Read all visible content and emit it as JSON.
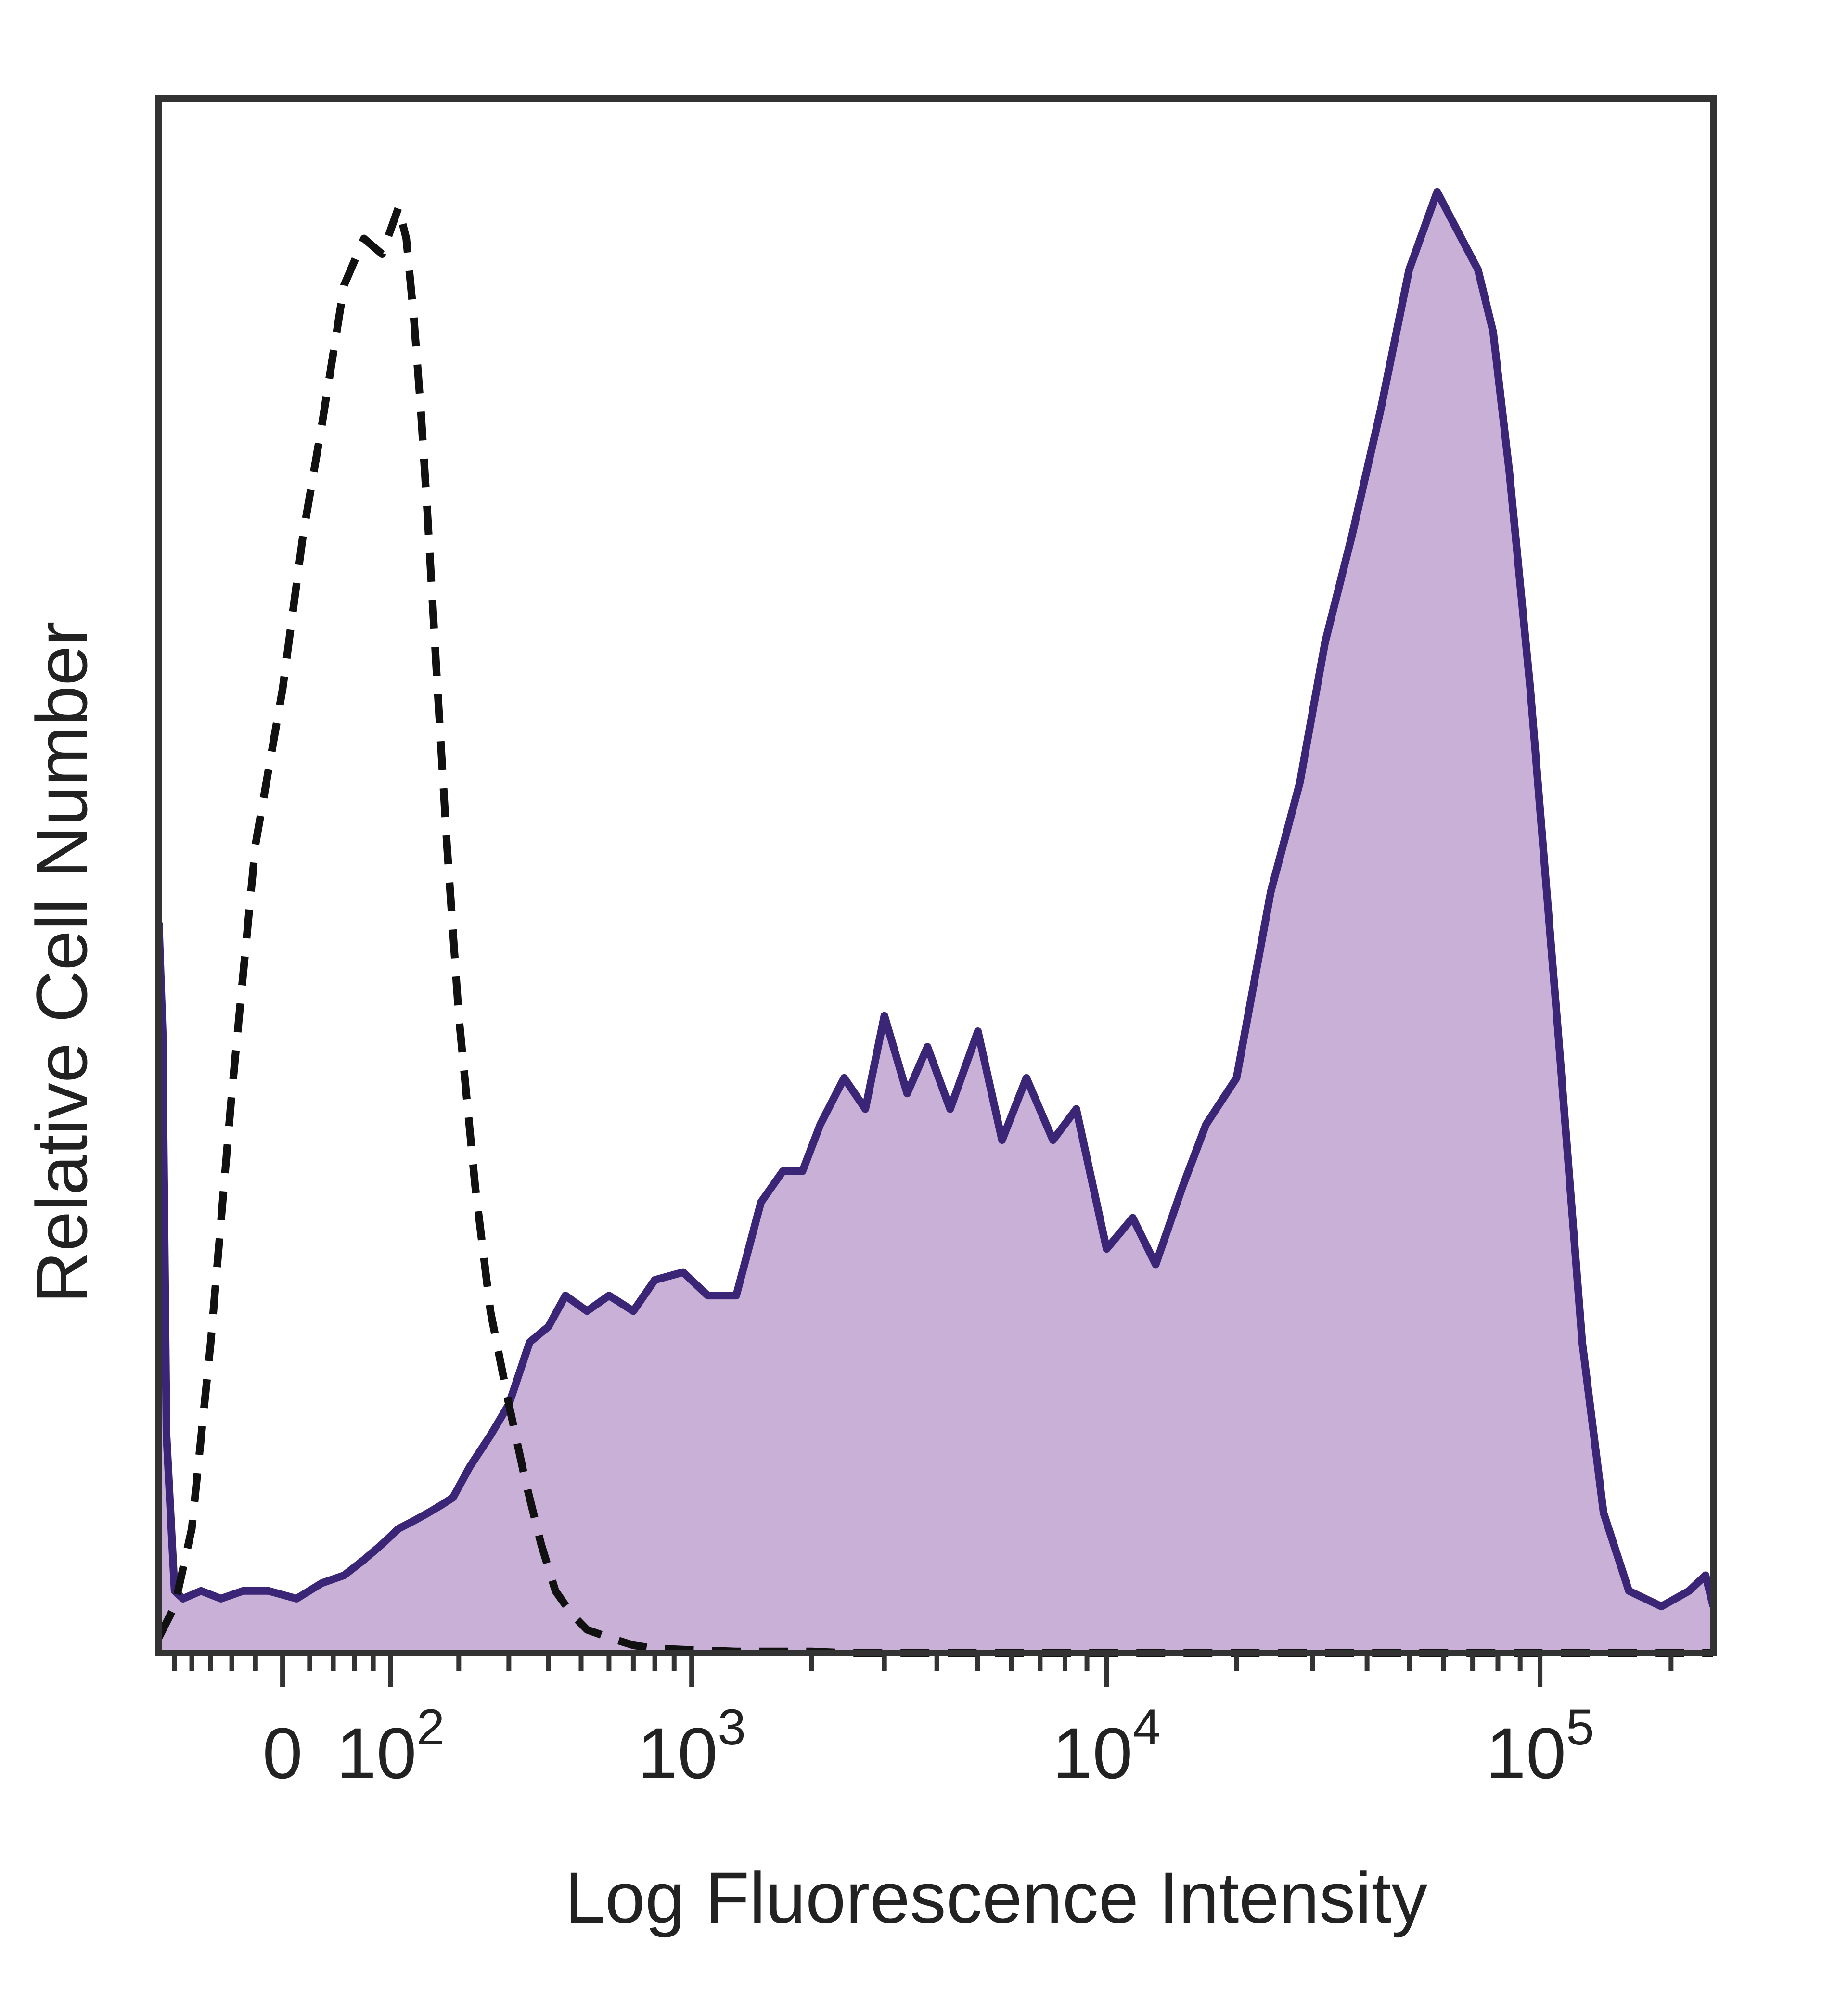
{
  "chart_data": {
    "type": "area",
    "xlabel": "Log Fluorescence Intensity",
    "ylabel": "Relative Cell Number",
    "x_scale": "biexponential",
    "x_ticks": [
      {
        "value": 0,
        "base": "0",
        "exp": ""
      },
      {
        "value": 100,
        "base": "10",
        "exp": "2"
      },
      {
        "value": 1000,
        "base": "10",
        "exp": "3"
      },
      {
        "value": 10000,
        "base": "10",
        "exp": "4"
      },
      {
        "value": 100000,
        "base": "10",
        "exp": "5"
      }
    ],
    "x_range": [
      -120,
      250000
    ],
    "y_range": [
      0,
      100
    ],
    "colors": {
      "stained_line": "#3a2577",
      "stained_fill": "#c8b0d6",
      "control_line": "#111111"
    },
    "series": [
      {
        "style": "filled",
        "x": [
          -120,
          -115,
          -110,
          -100,
          -90,
          -70,
          -50,
          -30,
          -10,
          10,
          30,
          50,
          70,
          90,
          110,
          130,
          150,
          170,
          190,
          220,
          260,
          300,
          350,
          400,
          450,
          520,
          600,
          700,
          800,
          950,
          1100,
          1300,
          1500,
          1700,
          1900,
          2100,
          2400,
          2700,
          3000,
          3400,
          3800,
          4300,
          5000,
          5700,
          6500,
          7500,
          8500,
          10000,
          11500,
          13000,
          15000,
          17000,
          20000,
          24000,
          28000,
          32000,
          37000,
          43000,
          50000,
          58000,
          66000,
          72000,
          78000,
          85000,
          95000,
          110000,
          125000,
          140000,
          160000,
          190000,
          220000,
          240000,
          250000
        ],
        "values": [
          47,
          40,
          14,
          4,
          3.5,
          4,
          3.5,
          4,
          4,
          3.5,
          4.5,
          5,
          6,
          7,
          8,
          8.5,
          9,
          9.5,
          10,
          12,
          14,
          16,
          20,
          21,
          23,
          22,
          23,
          22,
          24,
          24.5,
          23,
          23,
          29,
          31,
          31,
          34,
          37,
          35,
          41,
          36,
          39,
          35,
          40,
          33,
          37,
          33,
          35,
          26,
          28,
          25,
          30,
          34,
          37,
          49,
          56,
          65,
          72,
          80,
          89,
          94,
          91,
          89,
          85,
          76,
          62,
          40,
          20,
          9,
          4,
          3,
          4,
          5,
          3
        ]
      },
      {
        "style": "dashed",
        "x": [
          -120,
          -100,
          -80,
          -60,
          -40,
          -20,
          0,
          15,
          30,
          50,
          70,
          90,
          110,
          120,
          130,
          140,
          150,
          165,
          180,
          200,
          230,
          260,
          300,
          340,
          380,
          420,
          470,
          520,
          600,
          700,
          800,
          1000,
          1300,
          1600,
          2000,
          2500,
          3000,
          4000,
          5000,
          7000,
          10000,
          20000,
          50000,
          100000,
          250000
        ],
        "values": [
          1,
          3,
          8,
          20,
          36,
          52,
          62,
          72,
          79,
          88,
          91,
          90,
          93,
          91,
          86,
          80,
          73,
          62,
          52,
          41,
          30,
          22,
          16,
          11,
          7,
          4,
          2.5,
          1.5,
          1,
          0.5,
          0.3,
          0.2,
          0.1,
          0.1,
          0.1,
          0,
          0,
          0,
          0,
          0,
          0,
          0,
          0,
          0,
          0
        ]
      }
    ]
  }
}
